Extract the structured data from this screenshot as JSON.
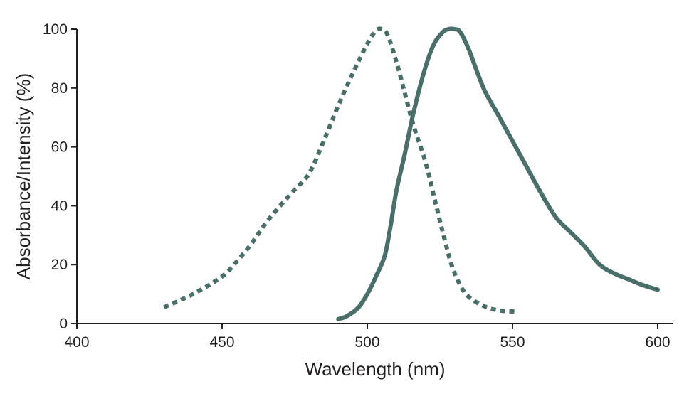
{
  "chart_data": {
    "type": "line",
    "title": "",
    "xlabel": "Wavelength (nm)",
    "ylabel": "Absorbance/Intensity (%)",
    "xlim": [
      400,
      605
    ],
    "ylim": [
      0,
      100
    ],
    "xticks": [
      400,
      450,
      500,
      550,
      600
    ],
    "yticks": [
      0,
      20,
      40,
      60,
      80,
      100
    ],
    "grid": false,
    "legend": "none",
    "series": [
      {
        "id": "absorbance",
        "style": "dotted",
        "color": "#4a6e69",
        "x": [
          430,
          440,
          450,
          455,
          460,
          465,
          470,
          475,
          480,
          485,
          490,
          495,
          500,
          503,
          505,
          507,
          510,
          513,
          516,
          520,
          523,
          526,
          529,
          532,
          535,
          540,
          545,
          552
        ],
        "y": [
          5.5,
          10,
          16,
          21,
          27,
          34,
          40,
          45.5,
          51,
          62,
          74,
          85,
          95,
          99.5,
          100,
          98,
          89,
          78,
          67,
          55,
          43,
          31,
          20,
          13,
          9,
          6,
          4.5,
          4
        ]
      },
      {
        "id": "emission",
        "style": "solid",
        "color": "#4a6e69",
        "x": [
          490,
          493,
          497,
          500,
          503,
          506,
          508,
          510,
          513,
          516,
          520,
          523,
          526,
          528,
          530,
          532,
          535,
          540,
          545,
          550,
          555,
          560,
          565,
          570,
          575,
          580,
          585,
          590,
          595,
          600
        ],
        "y": [
          1.5,
          2.5,
          5.5,
          10,
          16,
          23,
          33,
          45,
          58,
          72,
          87,
          95,
          99,
          100,
          100,
          99,
          93,
          80,
          71,
          62,
          53,
          44,
          36,
          31,
          26,
          20,
          17,
          15,
          13,
          11.5
        ]
      }
    ]
  }
}
